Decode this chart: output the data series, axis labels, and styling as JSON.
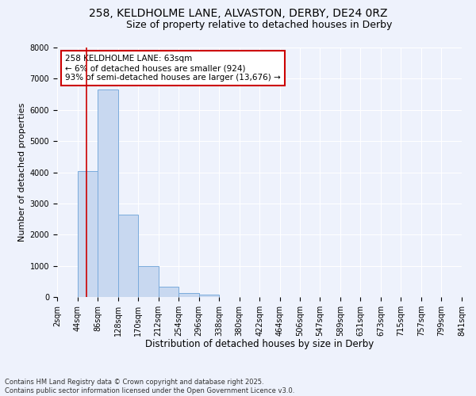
{
  "title_line1": "258, KELDHOLME LANE, ALVASTON, DERBY, DE24 0RZ",
  "title_line2": "Size of property relative to detached houses in Derby",
  "xlabel": "Distribution of detached houses by size in Derby",
  "ylabel": "Number of detached properties",
  "bar_values": [
    5,
    4050,
    6650,
    2650,
    1000,
    330,
    120,
    70,
    0,
    0,
    0,
    0,
    0,
    0,
    0,
    0,
    0,
    0,
    0,
    0
  ],
  "bin_edges": [
    2,
    44,
    86,
    128,
    170,
    212,
    254,
    296,
    338,
    380,
    422,
    464,
    506,
    547,
    589,
    631,
    673,
    715,
    757,
    799,
    841
  ],
  "bar_color": "#c8d8f0",
  "bar_edge_color": "#7aabdc",
  "bar_alpha": 1.0,
  "vline_x": 63,
  "vline_color": "#cc0000",
  "vline_linewidth": 1.2,
  "ylim": [
    0,
    8000
  ],
  "yticks": [
    0,
    1000,
    2000,
    3000,
    4000,
    5000,
    6000,
    7000,
    8000
  ],
  "annotation_text": "258 KELDHOLME LANE: 63sqm\n← 6% of detached houses are smaller (924)\n93% of semi-detached houses are larger (13,676) →",
  "annotation_fontsize": 7.5,
  "annotation_bbox_edgecolor": "#cc0000",
  "annotation_bbox_facecolor": "white",
  "title_fontsize1": 10,
  "title_fontsize2": 9,
  "xlabel_fontsize": 8.5,
  "ylabel_fontsize": 8,
  "tick_fontsize": 7,
  "footer_text": "Contains HM Land Registry data © Crown copyright and database right 2025.\nContains public sector information licensed under the Open Government Licence v3.0.",
  "footer_fontsize": 6,
  "background_color": "#eef2fc",
  "grid_color": "white",
  "x_tick_labels": [
    "2sqm",
    "44sqm",
    "86sqm",
    "128sqm",
    "170sqm",
    "212sqm",
    "254sqm",
    "296sqm",
    "338sqm",
    "380sqm",
    "422sqm",
    "464sqm",
    "506sqm",
    "547sqm",
    "589sqm",
    "631sqm",
    "673sqm",
    "715sqm",
    "757sqm",
    "799sqm",
    "841sqm"
  ]
}
